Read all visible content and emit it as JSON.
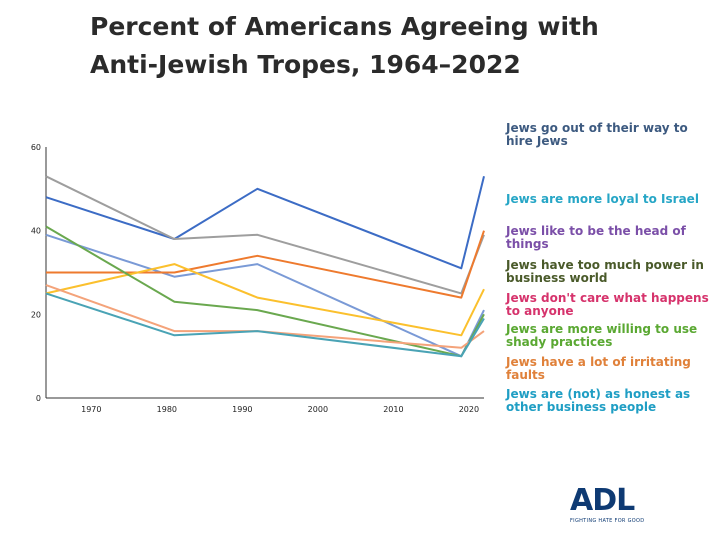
{
  "title": "Percent of Americans Agreeing with Anti-Jewish Tropes, 1964–2022",
  "chart_data": {
    "type": "line",
    "title": "Percent of Americans Agreeing with Anti-Jewish Tropes, 1964–2022",
    "xlabel": "",
    "ylabel": "",
    "xlim": [
      1964,
      2022
    ],
    "ylim": [
      0,
      60
    ],
    "x_ticks": [
      1970,
      1980,
      1990,
      2000,
      2010,
      2020
    ],
    "y_ticks": [
      0,
      20,
      40,
      60
    ],
    "grid": false,
    "legend_placement": "right",
    "x": [
      1964,
      1981,
      1992,
      2019,
      2022
    ],
    "series": [
      {
        "name": "Jews go out of their way to hire Jews",
        "color": "#3c6cc5",
        "values": [
          48,
          38,
          50,
          31,
          53
        ]
      },
      {
        "name": "Jews are more loyal to Israel",
        "color": "#9e9e9e",
        "values": [
          53,
          38,
          39,
          25,
          39
        ]
      },
      {
        "name": "Jews like to be the head of things",
        "color": "#7a9ad6",
        "values": [
          39,
          29,
          32,
          10,
          21
        ]
      },
      {
        "name": "Jews have too much power in business world",
        "color": "#ee7a2e",
        "values": [
          30,
          30,
          34,
          24,
          40
        ]
      },
      {
        "name": "Jews don't care what happens to anyone",
        "color": "#fbc02d",
        "values": [
          25,
          32,
          24,
          15,
          26
        ]
      },
      {
        "name": "Jews are more willing to use shady practices",
        "color": "#6aa84f",
        "values": [
          41,
          23,
          21,
          10,
          20
        ]
      },
      {
        "name": "Jews have a lot of irritating faults",
        "color": "#f4a37a",
        "values": [
          27,
          16,
          16,
          12,
          16
        ]
      },
      {
        "name": "Jews are (not) as honest as other business people",
        "color": "#4aa3b5",
        "values": [
          25,
          15,
          16,
          10,
          19
        ]
      }
    ]
  },
  "legend": [
    {
      "text": "Jews go out of their way to hire Jews",
      "color": "#3d5a80"
    },
    {
      "text": "Jews are more loyal to Israel",
      "color": "#26a6c6"
    },
    {
      "text": "Jews like to be the head of things",
      "color": "#7b4fa8"
    },
    {
      "text": "Jews have too much power in business world",
      "color": "#4a5a2a"
    },
    {
      "text": "Jews don't care what happens to anyone",
      "color": "#d6336c"
    },
    {
      "text": "Jews are more willing to use shady practices",
      "color": "#5aa832"
    },
    {
      "text": "Jews have a lot of irritating faults",
      "color": "#e0813a"
    },
    {
      "text": "Jews are (not) as honest as other business people",
      "color": "#1f9ec4"
    }
  ],
  "logo": {
    "text": "ADL",
    "tagline": "FIGHTING HATE FOR GOOD"
  }
}
